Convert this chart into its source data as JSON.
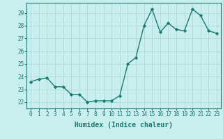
{
  "x": [
    0,
    1,
    2,
    3,
    4,
    5,
    6,
    7,
    8,
    9,
    10,
    11,
    12,
    13,
    14,
    15,
    16,
    17,
    18,
    19,
    20,
    21,
    22,
    23
  ],
  "y": [
    23.6,
    23.8,
    23.9,
    23.2,
    23.2,
    22.6,
    22.6,
    22.0,
    22.1,
    22.1,
    22.1,
    22.5,
    25.0,
    25.5,
    28.0,
    29.3,
    27.5,
    28.2,
    27.7,
    27.6,
    29.3,
    28.8,
    27.6,
    27.4
  ],
  "line_color": "#1a7a6e",
  "marker": "D",
  "marker_size": 2.2,
  "bg_color": "#c8eeee",
  "grid_color": "#b0d8d8",
  "xlabel": "Humidex (Indice chaleur)",
  "ylim": [
    21.5,
    29.8
  ],
  "xlim": [
    -0.5,
    23.5
  ],
  "yticks": [
    22,
    23,
    24,
    25,
    26,
    27,
    28,
    29
  ],
  "xtick_labels": [
    "0",
    "1",
    "2",
    "3",
    "4",
    "5",
    "6",
    "7",
    "8",
    "9",
    "10",
    "11",
    "12",
    "13",
    "14",
    "15",
    "16",
    "17",
    "18",
    "19",
    "20",
    "21",
    "22",
    "23"
  ],
  "tick_color": "#1a7a6e",
  "label_color": "#1a7a6e",
  "font_family": "monospace",
  "tick_fontsize": 5.5,
  "xlabel_fontsize": 7.0,
  "linewidth": 1.0
}
